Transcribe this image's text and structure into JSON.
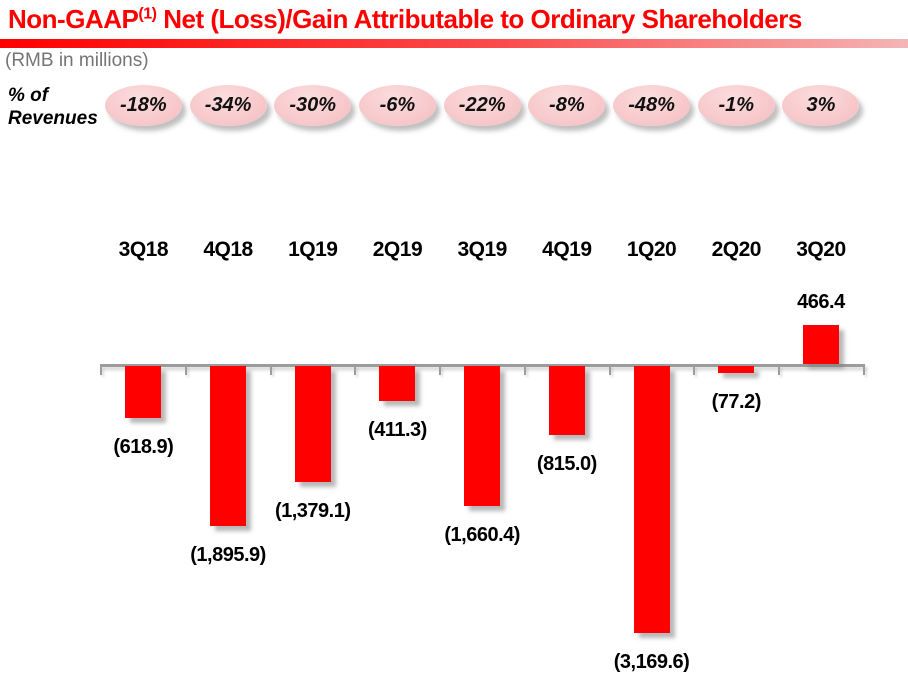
{
  "title": {
    "before_sup": "Non-GAAP",
    "sup": "(1)",
    "after_sup": " Net (Loss)/Gain Attributable to Ordinary Shareholders"
  },
  "subtitle": "(RMB in millions)",
  "row_label": {
    "line1": "% of",
    "line2": "Revenues"
  },
  "colors": {
    "accent_red": "#FE0000",
    "badge_pink": "#F8CBCD",
    "axis_gray": "#9C9C9C",
    "subtitle_gray": "#757575",
    "label_black": "#000000"
  },
  "chart_data": {
    "type": "bar",
    "title": "Non-GAAP(1) Net (Loss)/Gain Attributable to Ordinary Shareholders",
    "unit": "RMB in millions",
    "categories": [
      "3Q18",
      "4Q18",
      "1Q19",
      "2Q19",
      "3Q19",
      "4Q19",
      "1Q20",
      "2Q20",
      "3Q20"
    ],
    "values": [
      -618.9,
      -1895.9,
      -1379.1,
      -411.3,
      -1660.4,
      -815.0,
      -3169.6,
      -77.2,
      466.4
    ],
    "value_labels": [
      "(618.9)",
      "(1,895.9)",
      "(1,379.1)",
      "(411.3)",
      "(1,660.4)",
      "(815.0)",
      "(3,169.6)",
      "(77.2)",
      "466.4"
    ],
    "pct_of_revenues": [
      "-18%",
      "-34%",
      "-30%",
      "-6%",
      "-22%",
      "-8%",
      "-48%",
      "-1%",
      "3%"
    ],
    "bar_color": "#FE0000",
    "ylim": [
      -3400,
      700
    ],
    "baseline": 0,
    "grid": false,
    "legend": false
  }
}
